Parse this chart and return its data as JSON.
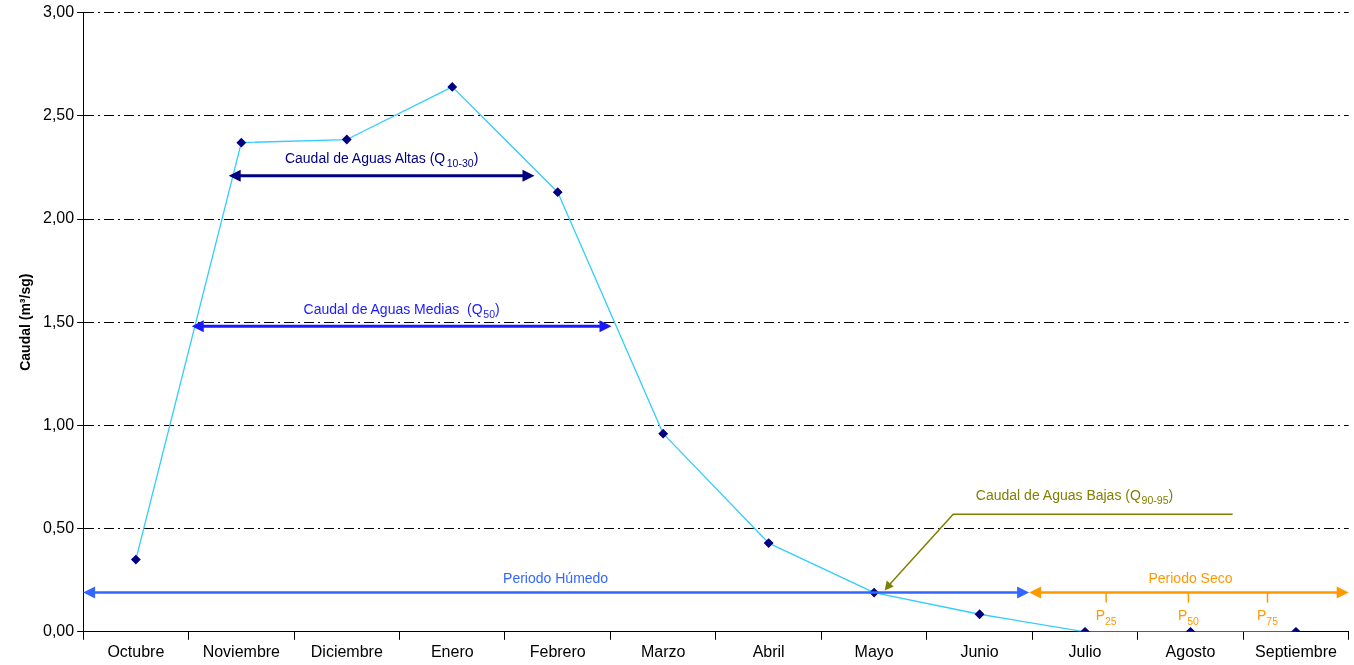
{
  "chart_data": {
    "type": "line",
    "ylabel": "Caudal (m³/sg)",
    "categories": [
      "Octubre",
      "Noviembre",
      "Diciembre",
      "Enero",
      "Febrero",
      "Marzo",
      "Abril",
      "Mayo",
      "Junio",
      "Julio",
      "Agosto",
      "Septiembre"
    ],
    "series": [
      {
        "color": "#33ccff",
        "values": [
          0.35,
          2.37,
          2.385,
          2.64,
          2.13,
          0.96,
          0.43,
          0.19,
          0.085,
          0,
          0,
          0
        ]
      }
    ],
    "marker": "diamond",
    "line_style": "solid",
    "grid": "y",
    "legend": false,
    "ylim": [
      0,
      3
    ],
    "yticks": [
      {
        "value": 0,
        "label": "0,00"
      },
      {
        "value": 0.5,
        "label": "0,50"
      },
      {
        "value": 1,
        "label": "1,00"
      },
      {
        "value": 1.5,
        "label": "1,50"
      },
      {
        "value": 2,
        "label": "2,00"
      },
      {
        "value": 2.5,
        "label": "2,50"
      },
      {
        "value": 3,
        "label": "3,00"
      }
    ],
    "annotations": [
      "Caudal de Aguas Altas (Q$_{10-30}$)",
      "Caudal de Aguas Medias  (Q$_{50}$)",
      "Caudal de Aguas Bajas (Q$_{90-95}$)",
      "Periodo Húmedo",
      "Periodo Seco",
      "P$_{25}$",
      "P$_{50}$",
      "P$_{75}$"
    ]
  }
}
